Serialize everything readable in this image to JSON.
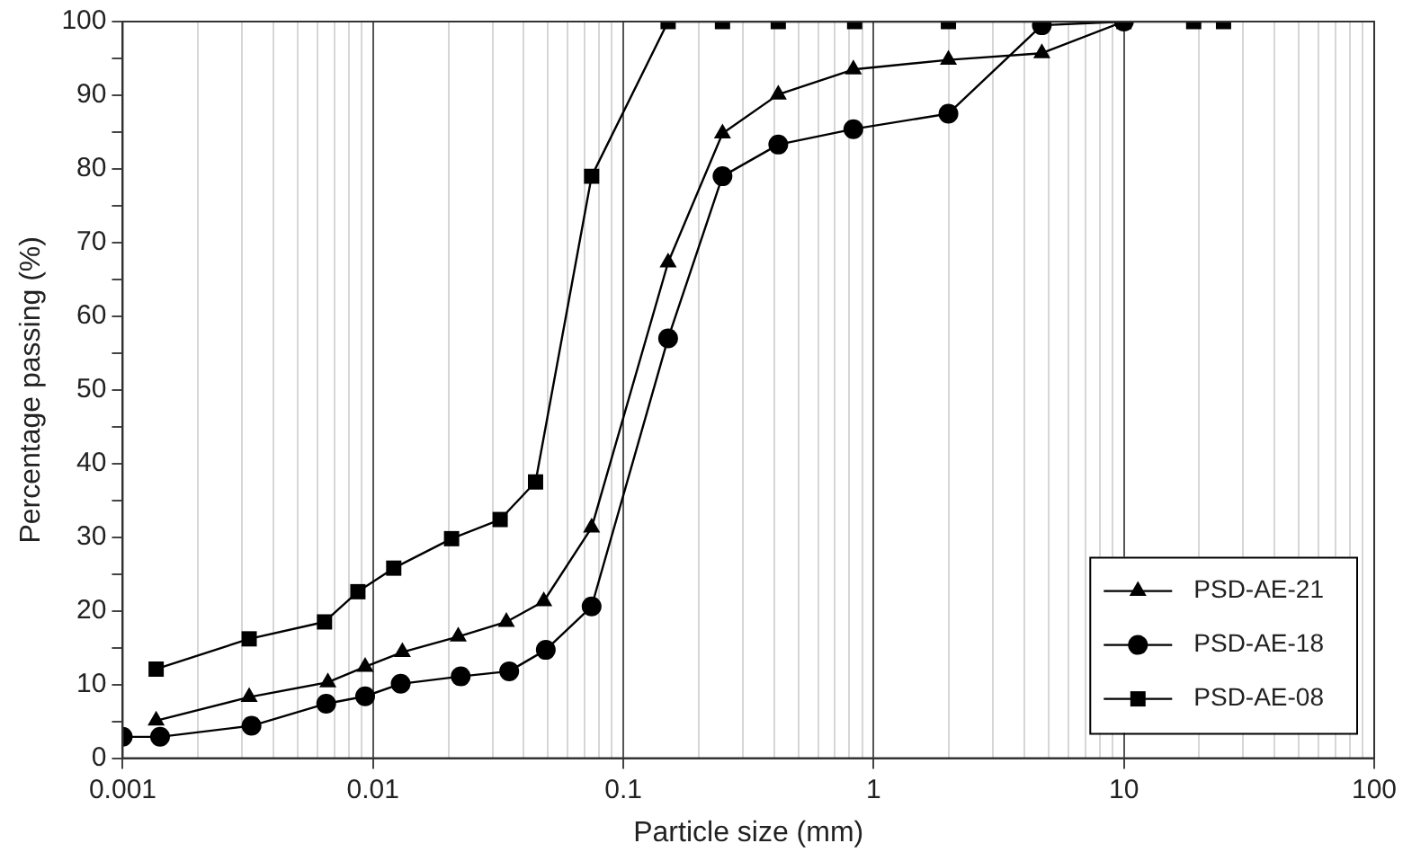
{
  "chart_data": {
    "type": "line",
    "xlabel": "Particle size (mm)",
    "ylabel": "Percentage passing (%)",
    "log": "x",
    "grid": "x",
    "legend": "bottom right",
    "xlim": [
      0.001,
      100
    ],
    "ylim": [
      0,
      100
    ],
    "xticks": [
      0.001,
      {
        "value": 0.002,
        "label": null
      },
      {
        "value": 0.003,
        "label": null
      },
      {
        "value": 0.004,
        "label": null
      },
      {
        "value": 0.005,
        "label": null
      },
      {
        "value": 0.006,
        "label": null
      },
      {
        "value": 0.007,
        "label": null
      },
      {
        "value": 0.008,
        "label": null
      },
      {
        "value": 0.009,
        "label": null
      },
      0.01,
      {
        "value": 0.02,
        "label": null
      },
      {
        "value": 0.03,
        "label": null
      },
      {
        "value": 0.04,
        "label": null
      },
      {
        "value": 0.05,
        "label": null
      },
      {
        "value": 0.06,
        "label": null
      },
      {
        "value": 0.07,
        "label": null
      },
      {
        "value": 0.08,
        "label": null
      },
      {
        "value": 0.09,
        "label": null
      },
      0.1,
      {
        "value": 0.2,
        "label": null
      },
      {
        "value": 0.3,
        "label": null
      },
      {
        "value": 0.4,
        "label": null
      },
      {
        "value": 0.5,
        "label": null
      },
      {
        "value": 0.6,
        "label": null
      },
      {
        "value": 0.7,
        "label": null
      },
      {
        "value": 0.8,
        "label": null
      },
      {
        "value": 0.9,
        "label": null
      },
      1,
      {
        "value": 2,
        "label": null
      },
      {
        "value": 3,
        "label": null
      },
      {
        "value": 4,
        "label": null
      },
      {
        "value": 5,
        "label": null
      },
      {
        "value": 6,
        "label": null
      },
      {
        "value": 7,
        "label": null
      },
      {
        "value": 8,
        "label": null
      },
      {
        "value": 9,
        "label": null
      },
      10,
      {
        "value": 20,
        "label": null
      },
      {
        "value": 30,
        "label": null
      },
      {
        "value": 40,
        "label": null
      },
      {
        "value": 50,
        "label": null
      },
      {
        "value": 60,
        "label": null
      },
      {
        "value": 70,
        "label": null
      },
      {
        "value": 80,
        "label": null
      },
      {
        "value": 90,
        "label": null
      },
      100
    ],
    "yticks": [
      0,
      {
        "value": 5,
        "label": null
      },
      10,
      {
        "value": 15,
        "label": null
      },
      20,
      {
        "value": 25,
        "label": null
      },
      30,
      {
        "value": 35,
        "label": null
      },
      40,
      {
        "value": 45,
        "label": null
      },
      50,
      {
        "value": 55,
        "label": null
      },
      60,
      {
        "value": 65,
        "label": null
      },
      70,
      {
        "value": 75,
        "label": null
      },
      80,
      {
        "value": 85,
        "label": null
      },
      90,
      {
        "value": 95,
        "label": null
      },
      100
    ],
    "line_style": "solid",
    "series": [
      {
        "name": "PSD-AE-21",
        "color": "#000000",
        "marker": "triangle",
        "x": [
          0.00136,
          0.0032,
          0.0066,
          0.0093,
          0.0131,
          0.0219,
          0.0341,
          0.0481,
          0.0747,
          0.151,
          0.249,
          0.416,
          0.83,
          1.99,
          4.7,
          10
        ],
        "values": [
          5.1,
          8.3,
          10.3,
          12.4,
          14.4,
          16.5,
          18.5,
          21.3,
          31.3,
          67.3,
          84.8,
          90.1,
          93.5,
          94.8,
          95.7,
          100
        ]
      },
      {
        "name": "PSD-AE-18",
        "color": "#000000",
        "marker": "circle",
        "x": [
          0.001,
          0.00141,
          0.00327,
          0.0065,
          0.0093,
          0.0129,
          0.0224,
          0.035,
          0.049,
          0.0747,
          0.151,
          0.249,
          0.416,
          0.83,
          1.99,
          4.7,
          10
        ],
        "values": [
          2.9,
          2.9,
          4.4,
          7.4,
          8.4,
          10.1,
          11.1,
          11.8,
          14.7,
          20.6,
          57,
          79,
          83.3,
          85.4,
          87.5,
          99.5,
          100
        ]
      },
      {
        "name": "PSD-AE-08",
        "color": "#000000",
        "marker": "square",
        "x": [
          0.00136,
          0.0032,
          0.0064,
          0.0087,
          0.0121,
          0.0206,
          0.0322,
          0.0446,
          0.0747,
          0.151,
          0.249,
          0.416,
          0.84,
          1.99,
          4.7,
          10,
          19,
          25
        ],
        "values": [
          12.1,
          16.2,
          18.5,
          22.6,
          25.8,
          29.8,
          32.4,
          37.5,
          79,
          100,
          100,
          100,
          100,
          100,
          100,
          100,
          100,
          100
        ]
      }
    ]
  }
}
